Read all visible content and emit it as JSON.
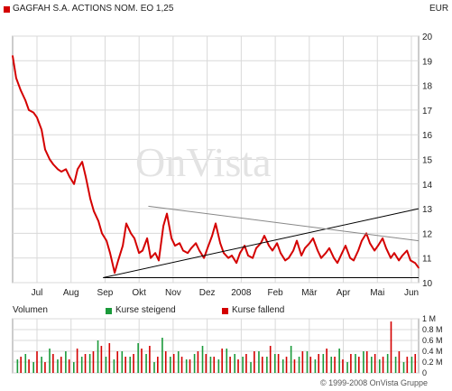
{
  "header": {
    "title": "GAGFAH S.A. ACTIONS NOM. EO 1,25",
    "currency": "EUR",
    "title_color": "#d40000"
  },
  "watermark": "OnVista",
  "footer": "© 1999-2008 OnVista Gruppe",
  "volume_legend": {
    "label": "Volumen",
    "up": "Kurse steigend",
    "down": "Kurse fallend",
    "up_color": "#1a9a3a",
    "down_color": "#d40000"
  },
  "chart_data": [
    {
      "type": "line",
      "title": "GAGFAH S.A. ACTIONS NOM. EO 1,25",
      "currency": "EUR",
      "x_labels": [
        "Jul",
        "Aug",
        "Sep",
        "Okt",
        "Nov",
        "Dez",
        "2008",
        "Feb",
        "Mär",
        "Apr",
        "Mai",
        "Jun"
      ],
      "y_ticks": [
        10,
        11,
        12,
        13,
        14,
        15,
        16,
        17,
        18,
        19,
        20
      ],
      "ylim": [
        10,
        20
      ],
      "grid": true,
      "series": [
        {
          "color": "#d40000",
          "x": [
            0,
            3,
            7,
            11,
            14,
            18,
            21,
            25,
            28,
            32,
            35,
            39,
            42,
            46,
            49,
            53,
            56,
            60,
            63,
            67,
            70,
            74,
            77,
            81,
            84,
            88,
            91,
            95,
            98,
            102,
            105,
            109,
            112,
            116,
            119,
            123,
            126,
            130,
            133,
            137,
            140,
            144,
            147,
            151,
            154,
            158,
            161,
            165,
            168,
            172,
            175,
            179,
            182,
            186,
            189,
            193,
            196,
            200,
            203,
            207,
            210,
            214,
            217,
            221,
            224,
            228,
            231,
            235,
            238,
            242,
            245,
            249,
            252,
            256,
            259,
            263,
            266,
            270,
            273,
            277,
            280,
            284,
            287,
            291,
            294,
            298,
            301,
            305,
            308,
            312,
            315,
            319,
            322,
            326,
            329,
            333,
            336,
            340,
            343,
            347,
            350
          ],
          "values": [
            19.2,
            18.3,
            17.8,
            17.4,
            17.0,
            16.9,
            16.7,
            16.2,
            15.4,
            15.0,
            14.8,
            14.6,
            14.5,
            14.6,
            14.3,
            14.0,
            14.6,
            14.9,
            14.3,
            13.4,
            12.9,
            12.5,
            12.0,
            11.7,
            11.2,
            10.4,
            10.9,
            11.5,
            12.4,
            12.0,
            11.8,
            11.2,
            11.3,
            11.8,
            11.0,
            11.2,
            10.9,
            12.3,
            12.8,
            11.8,
            11.5,
            11.6,
            11.3,
            11.2,
            11.4,
            11.6,
            11.3,
            11.0,
            11.4,
            11.9,
            12.4,
            11.6,
            11.2,
            11.0,
            11.1,
            10.8,
            11.2,
            11.5,
            11.1,
            11.0,
            11.4,
            11.6,
            11.9,
            11.5,
            11.3,
            11.6,
            11.2,
            10.9,
            11.0,
            11.3,
            11.7,
            11.1,
            11.4,
            11.6,
            11.8,
            11.3,
            11.0,
            11.2,
            11.4,
            11.0,
            10.8,
            11.2,
            11.5,
            11.0,
            10.9,
            11.3,
            11.7,
            12.0,
            11.6,
            11.3,
            11.5,
            11.8,
            11.4,
            11.0,
            11.2,
            10.9,
            11.1,
            11.3,
            10.9,
            10.8,
            10.6
          ]
        }
      ],
      "trendlines": [
        {
          "color": "#000000",
          "from": {
            "x": 78,
            "y": 10.2
          },
          "to": {
            "x": 350,
            "y": 13.0
          }
        },
        {
          "color": "#888888",
          "from": {
            "x": 117,
            "y": 13.1
          },
          "to": {
            "x": 350,
            "y": 11.7
          }
        },
        {
          "color": "#000000",
          "from": {
            "x": 78,
            "y": 10.2
          },
          "to": {
            "x": 350,
            "y": 10.2
          }
        }
      ]
    },
    {
      "type": "bar",
      "title": "Volumen",
      "y_ticks": [
        "0",
        "0.2 M",
        "0.4 M",
        "0.6 M",
        "0.8 M",
        "1 M"
      ],
      "ylim": [
        0,
        1.0
      ],
      "unit": "M",
      "series": [
        {
          "name": "Kurse steigend",
          "color": "#1a9a3a",
          "x": [
            2,
            9,
            16,
            23,
            30,
            37,
            44,
            51,
            58,
            65,
            72,
            79,
            86,
            93,
            100,
            107,
            114,
            121,
            128,
            135,
            142,
            149,
            156,
            163,
            170,
            177,
            184,
            191,
            198,
            205,
            212,
            219,
            226,
            233,
            240,
            247,
            254,
            261,
            268,
            275,
            282,
            289,
            296,
            303,
            310,
            317,
            324,
            331,
            338,
            345
          ],
          "values": [
            0.25,
            0.35,
            0.2,
            0.3,
            0.45,
            0.25,
            0.4,
            0.2,
            0.3,
            0.35,
            0.6,
            0.3,
            0.25,
            0.4,
            0.3,
            0.55,
            0.35,
            0.2,
            0.65,
            0.3,
            0.4,
            0.25,
            0.35,
            0.5,
            0.3,
            0.25,
            0.45,
            0.35,
            0.3,
            0.2,
            0.4,
            0.3,
            0.35,
            0.25,
            0.5,
            0.3,
            0.4,
            0.25,
            0.35,
            0.3,
            0.45,
            0.2,
            0.35,
            0.4,
            0.3,
            0.25,
            0.35,
            0.3,
            0.2,
            0.3
          ]
        },
        {
          "name": "Kurse fallend",
          "color": "#d40000",
          "x": [
            5,
            12,
            19,
            26,
            33,
            40,
            47,
            54,
            61,
            68,
            75,
            82,
            89,
            96,
            103,
            110,
            117,
            124,
            131,
            138,
            145,
            152,
            159,
            166,
            173,
            180,
            187,
            194,
            201,
            208,
            215,
            222,
            229,
            236,
            243,
            250,
            257,
            264,
            271,
            278,
            285,
            292,
            299,
            306,
            313,
            320,
            327,
            334,
            341,
            348
          ],
          "values": [
            0.3,
            0.25,
            0.4,
            0.2,
            0.35,
            0.3,
            0.25,
            0.45,
            0.35,
            0.4,
            0.5,
            0.55,
            0.4,
            0.3,
            0.35,
            0.45,
            0.5,
            0.3,
            0.4,
            0.35,
            0.3,
            0.25,
            0.4,
            0.35,
            0.3,
            0.45,
            0.3,
            0.25,
            0.35,
            0.4,
            0.3,
            0.5,
            0.35,
            0.3,
            0.25,
            0.4,
            0.3,
            0.35,
            0.45,
            0.3,
            0.25,
            0.35,
            0.3,
            0.4,
            0.35,
            0.3,
            0.95,
            0.4,
            0.3,
            0.35
          ]
        }
      ]
    }
  ]
}
